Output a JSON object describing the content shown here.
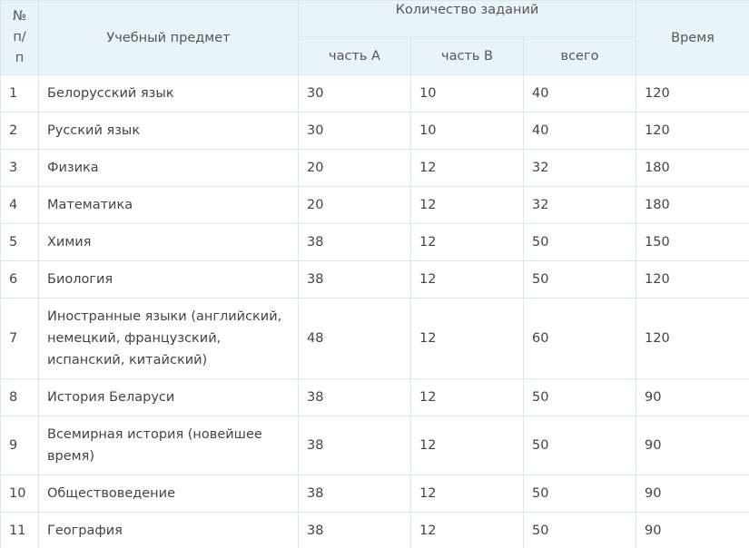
{
  "table": {
    "headers": {
      "num_line1": "№",
      "num_line2": "п/п",
      "subject": "Учебный предмет",
      "tasks_group": "Количество заданий",
      "part_a": "часть А",
      "part_b": "часть В",
      "total": "всего",
      "time": "Время"
    },
    "rows": [
      {
        "num": "1",
        "subject": "Белорусский язык",
        "part_a": "30",
        "part_b": "10",
        "total": "40",
        "time": "120"
      },
      {
        "num": "2",
        "subject": "Русский язык",
        "part_a": "30",
        "part_b": "10",
        "total": "40",
        "time": "120"
      },
      {
        "num": "3",
        "subject": "Физика",
        "part_a": "20",
        "part_b": "12",
        "total": "32",
        "time": "180"
      },
      {
        "num": "4",
        "subject": "Математика",
        "part_a": "20",
        "part_b": "12",
        "total": "32",
        "time": "180"
      },
      {
        "num": "5",
        "subject": "Химия",
        "part_a": "38",
        "part_b": "12",
        "total": "50",
        "time": "150"
      },
      {
        "num": "6",
        "subject": "Биология",
        "part_a": "38",
        "part_b": "12",
        "total": "50",
        "time": "120"
      },
      {
        "num": "7",
        "subject": "Иностранные языки (английский, немецкий, французский, испанский, китайский)",
        "part_a": "48",
        "part_b": "12",
        "total": "60",
        "time": "120"
      },
      {
        "num": "8",
        "subject": "История Беларуси",
        "part_a": "38",
        "part_b": "12",
        "total": "50",
        "time": "90"
      },
      {
        "num": "9",
        "subject": "Всемирная история (новейшее время)",
        "part_a": "38",
        "part_b": "12",
        "total": "50",
        "time": "90"
      },
      {
        "num": "10",
        "subject": "Обществоведение",
        "part_a": "38",
        "part_b": "12",
        "total": "50",
        "time": "90"
      },
      {
        "num": "11",
        "subject": "География",
        "part_a": "38",
        "part_b": "12",
        "total": "50",
        "time": "90"
      }
    ]
  },
  "colors": {
    "header_bg": "#e8f4fa",
    "border": "#dbe8ee",
    "text": "#444444"
  }
}
